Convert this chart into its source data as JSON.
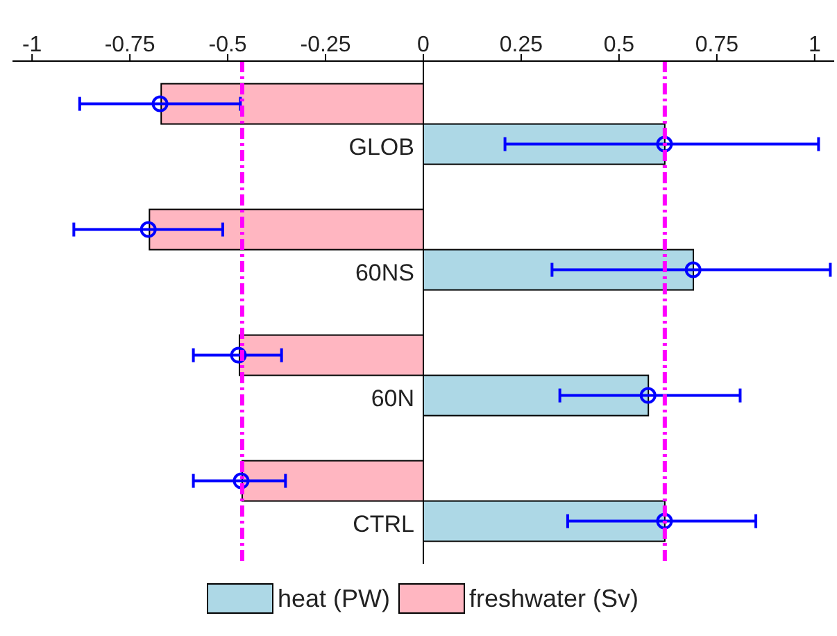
{
  "chart_data": {
    "type": "bar",
    "orientation": "horizontal",
    "categories": [
      "GLOB",
      "60NS",
      "60N",
      "CTRL"
    ],
    "series": [
      {
        "name": "heat (PW)",
        "color": "#add8e6",
        "values": [
          0.617,
          0.69,
          0.575,
          0.617
        ],
        "errors": [
          [
            0.21,
            1.01
          ],
          [
            0.33,
            1.04
          ],
          [
            0.35,
            0.81
          ],
          [
            0.37,
            0.85
          ]
        ]
      },
      {
        "name": "freshwater (Sv)",
        "color": "#ffb6c1",
        "values": [
          -0.67,
          -0.7,
          -0.47,
          -0.463
        ],
        "errors": [
          [
            -0.875,
            -0.465
          ],
          [
            -0.89,
            -0.51
          ],
          [
            -0.585,
            -0.36
          ],
          [
            -0.585,
            -0.35
          ]
        ]
      }
    ],
    "xlim": [
      -1.05,
      1.05
    ],
    "xticks": [
      -1,
      -0.75,
      -0.5,
      -0.25,
      0,
      0.25,
      0.5,
      0.75,
      1
    ],
    "ref_lines": [
      {
        "axis": "x",
        "value": -0.463,
        "color": "#ff00ff",
        "line_style": "dashdot"
      },
      {
        "axis": "x",
        "value": 0.617,
        "color": "#ff00ff",
        "line_style": "dashdot"
      }
    ],
    "marker": "circle",
    "legend": "bottom"
  }
}
